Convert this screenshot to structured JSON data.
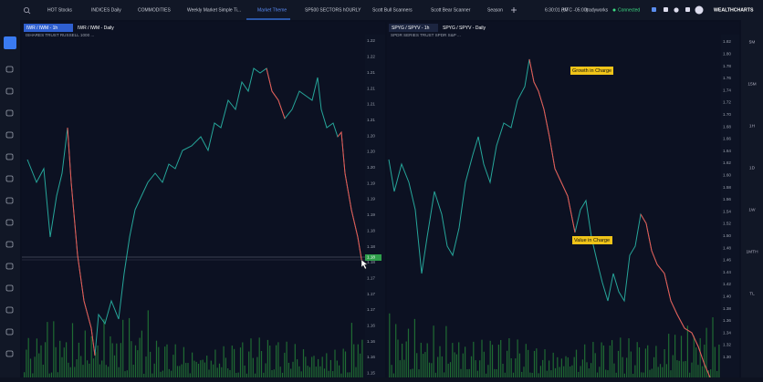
{
  "tabs": [
    "HOT Stocks",
    "INDICES Daily",
    "COMMODITIES",
    "Weekly Market Simple Ti...",
    "Market Theme",
    "SP500 SECTORS hOURLY",
    "Scott Bull Scanners",
    "Scott Bear Scanner",
    "Season"
  ],
  "status": {
    "time": "6:30:01 PM",
    "timezone": "(UTC -05:00)",
    "user": "tradyworks",
    "connection": "Connected"
  },
  "brand": "WEALTHCHARTS",
  "panes": [
    {
      "tabs": [
        "IWR / IWM - 1h",
        "IWR / IWM - Daily"
      ],
      "symbol": "ISHARES TRUST RUSSELL 1000 ...",
      "price_axis": [
        "1.22",
        "1.22",
        "1.21",
        "1.21",
        "1.21",
        "1.21",
        "1.20",
        "1.20",
        "1.20",
        "1.19",
        "1.19",
        "1.19",
        "1.18",
        "1.18",
        "1.18",
        "1.17",
        "1.17",
        "1.17",
        "1.16",
        "1.16",
        "1.16",
        "1.15"
      ],
      "last_price": "1.18"
    },
    {
      "tabs": [
        "SPYG / SPYV - 1h",
        "SPYG / SPYV - Daily"
      ],
      "symbol": "SPDR SERIES TRUST SPDR S&P ...",
      "price_axis": [
        "1.82",
        "1.80",
        "1.78",
        "1.76",
        "1.74",
        "1.72",
        "1.70",
        "1.68",
        "1.66",
        "1.64",
        "1.62",
        "1.60",
        "1.58",
        "1.56",
        "1.54",
        "1.52",
        "1.50",
        "1.48",
        "1.46",
        "1.44",
        "1.42",
        "1.40",
        "1.38",
        "1.36",
        "1.34",
        "1.32",
        "1.30"
      ],
      "annotations": [
        "Growth in Charge",
        "Value in Charge"
      ]
    }
  ],
  "timeframes": [
    "5M",
    "15M",
    "1H",
    "1D",
    "1W",
    "1MTH",
    "TL"
  ]
}
